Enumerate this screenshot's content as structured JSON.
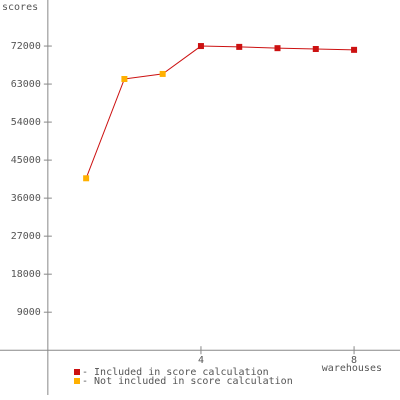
{
  "chart_data": {
    "type": "line",
    "y_label": "scores",
    "x_label": "warehouses",
    "x": [
      1,
      2,
      3,
      4,
      5,
      6,
      7,
      8
    ],
    "series": [
      {
        "name": "- Included in score calculation",
        "color": "#cc1111",
        "values": [
          null,
          null,
          null,
          72000,
          71800,
          71500,
          71300,
          71100
        ]
      },
      {
        "name": "- Not included in score calculation",
        "color": "#ffb000",
        "values": [
          40700,
          64200,
          65400,
          null,
          null,
          null,
          null,
          null
        ]
      }
    ],
    "line_color": "#cc1111",
    "xlim": [
      -1.25,
      9.2
    ],
    "xticks": [
      4,
      8
    ],
    "ylim": [
      -10600,
      82900
    ],
    "yticks": [
      9000,
      18000,
      27000,
      36000,
      45000,
      54000,
      63000,
      72000
    ]
  }
}
